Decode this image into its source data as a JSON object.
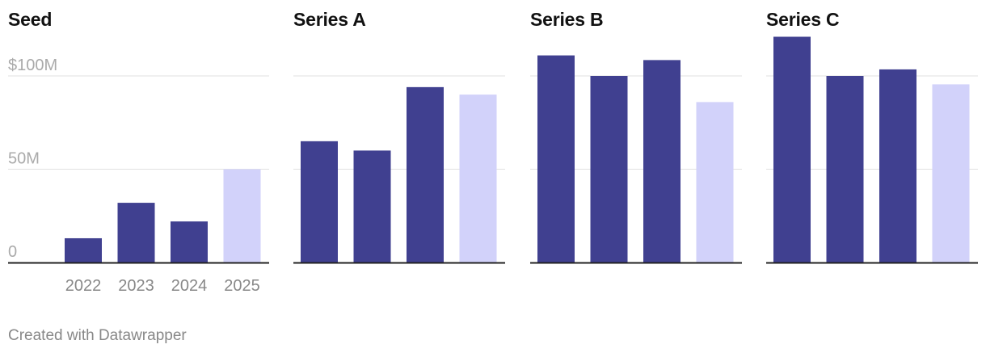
{
  "footer": "Created with Datawrapper",
  "colors": {
    "bar": "#404090",
    "bar_highlight": "#d2d2fa",
    "grid": "#e1e1e1",
    "axis": "#222222",
    "tick_text": "#aaaaaa",
    "xtick_text": "#888888"
  },
  "chart_data": [
    {
      "type": "bar",
      "title": "Seed",
      "categories": [
        "2022",
        "2023",
        "2024",
        "2025"
      ],
      "values": [
        13,
        32,
        22,
        50
      ],
      "highlight": [
        false,
        false,
        false,
        true
      ],
      "ylim": [
        0,
        100
      ],
      "yticks": [
        0,
        50,
        100
      ],
      "ytick_labels": [
        "0",
        "50M",
        "$100M"
      ],
      "grid": true,
      "show_y_labels": true,
      "show_x_labels": true
    },
    {
      "type": "bar",
      "title": "Series A",
      "categories": [
        "2022",
        "2023",
        "2024",
        "2025"
      ],
      "values": [
        65,
        60,
        94,
        90
      ],
      "highlight": [
        false,
        false,
        false,
        true
      ],
      "ylim": [
        0,
        100
      ],
      "yticks": [
        0,
        50,
        100
      ],
      "grid": true,
      "show_y_labels": false,
      "show_x_labels": false
    },
    {
      "type": "bar",
      "title": "Series B",
      "categories": [
        "2022",
        "2023",
        "2024",
        "2025"
      ],
      "values": [
        111,
        100,
        108.5,
        86
      ],
      "highlight": [
        false,
        false,
        false,
        true
      ],
      "ylim": [
        0,
        100
      ],
      "yticks": [
        0,
        50,
        100
      ],
      "grid": true,
      "show_y_labels": false,
      "show_x_labels": false
    },
    {
      "type": "bar",
      "title": "Series C",
      "categories": [
        "2022",
        "2023",
        "2024",
        "2025"
      ],
      "values": [
        121,
        100,
        103.5,
        95.5
      ],
      "highlight": [
        false,
        false,
        false,
        true
      ],
      "ylim": [
        0,
        100
      ],
      "yticks": [
        0,
        50,
        100
      ],
      "grid": true,
      "show_y_labels": false,
      "show_x_labels": false
    }
  ]
}
